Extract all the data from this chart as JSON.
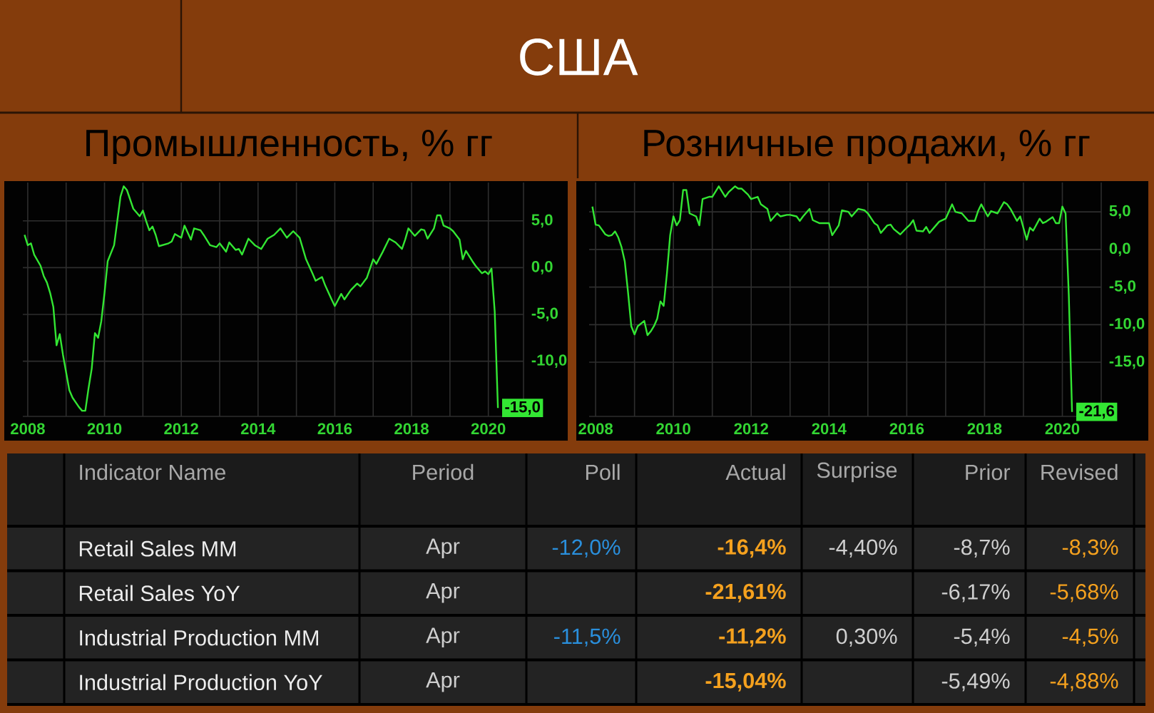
{
  "chart_data": [
    {
      "type": "line",
      "title": "Промышленность, % гг",
      "annotations": [
        "США"
      ],
      "x": [
        "2007-12",
        "2008-01",
        "2008-02",
        "2008-03",
        "2008-05",
        "2008-06",
        "2008-07",
        "2008-08",
        "2008-09",
        "2008-10",
        "2008-11",
        "2008-12",
        "2009-02",
        "2009-03",
        "2009-05",
        "2009-06",
        "2009-07",
        "2009-08",
        "2009-09",
        "2009-10",
        "2009-11",
        "2009-12",
        "2010-01",
        "2010-02",
        "2010-04",
        "2010-05",
        "2010-06",
        "2010-07",
        "2010-08",
        "2010-09",
        "2010-10",
        "2010-12",
        "2011-01",
        "2011-02",
        "2011-03",
        "2011-04",
        "2011-05",
        "2011-06",
        "2011-09",
        "2011-10",
        "2011-11",
        "2012-01",
        "2012-02",
        "2012-04",
        "2012-05",
        "2012-07",
        "2012-08",
        "2012-10",
        "2012-12",
        "2013-01",
        "2013-03",
        "2013-04",
        "2013-06",
        "2013-07",
        "2013-08",
        "2013-10",
        "2013-12",
        "2014-02",
        "2014-04",
        "2014-06",
        "2014-08",
        "2014-10",
        "2014-12",
        "2015-02",
        "2015-04",
        "2015-06",
        "2015-07",
        "2015-09",
        "2015-10",
        "2015-12",
        "2016-01",
        "2016-03",
        "2016-04",
        "2016-06",
        "2016-08",
        "2016-09",
        "2016-11",
        "2017-01",
        "2017-02",
        "2017-04",
        "2017-06",
        "2017-08",
        "2017-10",
        "2017-11",
        "2017-12",
        "2018-02",
        "2018-04",
        "2018-05",
        "2018-06",
        "2018-08",
        "2018-09",
        "2018-10",
        "2018-11",
        "2019-01",
        "2019-02",
        "2019-04",
        "2019-05",
        "2019-06",
        "2019-08",
        "2019-09",
        "2019-11",
        "2019-12",
        "2020-01",
        "2020-02",
        "2020-03",
        "2020-04"
      ],
      "series": [
        {
          "color": "#33e633",
          "values": [
            3.5,
            2.4,
            2.6,
            1.4,
            0.2,
            -0.9,
            -1.6,
            -2.7,
            -4.2,
            -8.3,
            -7.1,
            -9.3,
            -13.1,
            -13.9,
            -14.9,
            -15.3,
            -15.3,
            -12.9,
            -10.8,
            -7.0,
            -7.5,
            -5.7,
            -2.7,
            0.7,
            2.4,
            5.0,
            7.6,
            8.7,
            8.3,
            7.3,
            6.3,
            5.5,
            6.1,
            5.0,
            4.0,
            4.4,
            3.5,
            2.3,
            2.6,
            2.8,
            3.6,
            3.2,
            4.5,
            3.0,
            4.2,
            4.0,
            3.5,
            2.4,
            2.2,
            2.6,
            1.7,
            2.7,
            1.9,
            2.0,
            1.4,
            3.1,
            2.4,
            2.0,
            3.1,
            3.5,
            4.2,
            3.2,
            3.9,
            3.2,
            0.9,
            -0.6,
            -1.4,
            -1.0,
            -1.9,
            -3.4,
            -4.1,
            -2.8,
            -3.4,
            -2.4,
            -1.7,
            -2.0,
            -1.1,
            0.9,
            0.4,
            1.7,
            3.1,
            2.7,
            2.0,
            3.0,
            4.2,
            3.4,
            4.1,
            4.0,
            3.1,
            4.2,
            5.6,
            5.6,
            4.5,
            4.2,
            3.9,
            3.0,
            0.9,
            1.8,
            0.7,
            0.2,
            -0.6,
            -0.4,
            -0.7,
            -0.1,
            -4.7,
            -15.0
          ],
          "value_labels": [
            null,
            null,
            null,
            null,
            null,
            null,
            null,
            null,
            null,
            null,
            null,
            null,
            null,
            null,
            null,
            null,
            null,
            null,
            null,
            null,
            null,
            null,
            null,
            null,
            null,
            null,
            null,
            null,
            null,
            null,
            null,
            null,
            null,
            null,
            null,
            null,
            null,
            null,
            null,
            null,
            null,
            null,
            null,
            null,
            null,
            null,
            null,
            null,
            null,
            null,
            null,
            null,
            null,
            null,
            null,
            null,
            null,
            null,
            null,
            null,
            null,
            null,
            null,
            null,
            null,
            null,
            null,
            null,
            null,
            null,
            null,
            null,
            null,
            null,
            null,
            null,
            null,
            null,
            null,
            null,
            null,
            null,
            null,
            null,
            null,
            null,
            null,
            null,
            null,
            null,
            null,
            null,
            null,
            null,
            null,
            null,
            null,
            null,
            null,
            null,
            null,
            null,
            null,
            null,
            null,
            "-15,0"
          ]
        }
      ],
      "xlim": [
        "2007-11-15",
        "2020-12"
      ],
      "xticks": [
        "2008",
        {
          "value": "2009",
          "label": null
        },
        "2010",
        {
          "value": "2011",
          "label": null
        },
        "2012",
        {
          "value": "2013",
          "label": null
        },
        "2014",
        {
          "value": "2015",
          "label": null
        },
        "2016",
        {
          "value": "2017",
          "label": null
        },
        "2018",
        {
          "value": "2019",
          "label": null
        },
        "2020"
      ],
      "ylim": [
        -15.9,
        9.1
      ],
      "yticks": [
        {
          "value": 5,
          "label": "5,0"
        },
        {
          "value": 0,
          "label": "0,0"
        },
        {
          "value": -5,
          "label": "-5,0"
        },
        {
          "value": -10,
          "label": "-10,0"
        }
      ],
      "grid": true
    },
    {
      "type": "line",
      "title": "Розничные продажи, % гг",
      "x": [
        "2007-12",
        "2008-01",
        "2008-02",
        "2008-04",
        "2008-05",
        "2008-06",
        "2008-07",
        "2008-08",
        "2008-09",
        "2008-10",
        "2008-11",
        "2008-12",
        "2009-01",
        "2009-02",
        "2009-04",
        "2009-05",
        "2009-06",
        "2009-07",
        "2009-08",
        "2009-09",
        "2009-10",
        "2009-11",
        "2009-12",
        "2010-01",
        "2010-02",
        "2010-03",
        "2010-04",
        "2010-05",
        "2010-06",
        "2010-08",
        "2010-09",
        "2010-10",
        "2010-12",
        "2011-01",
        "2011-03",
        "2011-05",
        "2011-06",
        "2011-08",
        "2011-09",
        "2011-10",
        "2011-12",
        "2012-01",
        "2012-03",
        "2012-04",
        "2012-06",
        "2012-07",
        "2012-09",
        "2012-10",
        "2012-12",
        "2013-01",
        "2013-03",
        "2013-04",
        "2013-05",
        "2013-07",
        "2013-08",
        "2013-10",
        "2013-11",
        "2014-01",
        "2014-02",
        "2014-04",
        "2014-05",
        "2014-07",
        "2014-08",
        "2014-10",
        "2014-12",
        "2015-01",
        "2015-03",
        "2015-04",
        "2015-05",
        "2015-07",
        "2015-08",
        "2015-09",
        "2015-11",
        "2016-01",
        "2016-02",
        "2016-03",
        "2016-04",
        "2016-06",
        "2016-07",
        "2016-08",
        "2016-10",
        "2016-11",
        "2017-01",
        "2017-03",
        "2017-04",
        "2017-06",
        "2017-08",
        "2017-10",
        "2017-11",
        "2017-12",
        "2018-02",
        "2018-03",
        "2018-05",
        "2018-07",
        "2018-08",
        "2018-09",
        "2018-11",
        "2018-12",
        "2019-02",
        "2019-03",
        "2019-04",
        "2019-06",
        "2019-07",
        "2019-08",
        "2019-10",
        "2019-11",
        "2019-12",
        "2020-01",
        "2020-02",
        "2020-03",
        "2020-04"
      ],
      "series": [
        {
          "color": "#33e633",
          "values": [
            5.7,
            3.3,
            3.2,
            2.0,
            1.8,
            1.9,
            2.4,
            1.6,
            0.3,
            -1.6,
            -5.7,
            -10.2,
            -11.3,
            -10.2,
            -9.5,
            -11.4,
            -10.9,
            -10.2,
            -9.2,
            -6.9,
            -7.5,
            -3.2,
            1.9,
            4.4,
            3.2,
            3.9,
            7.9,
            7.9,
            4.8,
            4.4,
            3.2,
            6.7,
            7.0,
            7.0,
            8.4,
            7.0,
            7.6,
            8.4,
            8.1,
            8.1,
            7.3,
            6.7,
            7.0,
            6.0,
            5.4,
            3.8,
            4.8,
            4.4,
            4.6,
            4.6,
            4.4,
            3.8,
            4.4,
            5.4,
            3.9,
            3.5,
            3.5,
            3.5,
            1.9,
            3.2,
            5.2,
            5.0,
            4.4,
            5.4,
            5.2,
            4.8,
            3.5,
            3.2,
            2.2,
            3.2,
            3.3,
            2.7,
            2.0,
            2.9,
            3.3,
            3.9,
            2.5,
            2.4,
            3.0,
            2.2,
            3.2,
            3.7,
            4.1,
            6.0,
            5.0,
            4.8,
            3.8,
            3.8,
            5.1,
            6.0,
            4.4,
            5.1,
            4.8,
            6.3,
            6.0,
            5.4,
            3.8,
            4.4,
            1.3,
            2.9,
            2.5,
            4.1,
            3.5,
            3.7,
            4.3,
            3.5,
            3.5,
            5.7,
            4.8,
            -6.2,
            -21.6
          ],
          "value_labels": [
            null,
            null,
            null,
            null,
            null,
            null,
            null,
            null,
            null,
            null,
            null,
            null,
            null,
            null,
            null,
            null,
            null,
            null,
            null,
            null,
            null,
            null,
            null,
            null,
            null,
            null,
            null,
            null,
            null,
            null,
            null,
            null,
            null,
            null,
            null,
            null,
            null,
            null,
            null,
            null,
            null,
            null,
            null,
            null,
            null,
            null,
            null,
            null,
            null,
            null,
            null,
            null,
            null,
            null,
            null,
            null,
            null,
            null,
            null,
            null,
            null,
            null,
            null,
            null,
            null,
            null,
            null,
            null,
            null,
            null,
            null,
            null,
            null,
            null,
            null,
            null,
            null,
            null,
            null,
            null,
            null,
            null,
            null,
            null,
            null,
            null,
            null,
            null,
            null,
            null,
            null,
            null,
            null,
            null,
            null,
            null,
            null,
            null,
            null,
            null,
            null,
            null,
            null,
            null,
            null,
            null,
            null,
            null,
            null,
            null,
            "-21,6"
          ]
        }
      ],
      "xlim": [
        "2007-11",
        "2021-01"
      ],
      "xticks": [
        "2008",
        {
          "value": "2009",
          "label": null
        },
        "2010",
        {
          "value": "2011",
          "label": null
        },
        "2012",
        {
          "value": "2013",
          "label": null
        },
        "2014",
        {
          "value": "2015",
          "label": null
        },
        "2016",
        {
          "value": "2017",
          "label": null
        },
        "2018",
        {
          "value": "2019",
          "label": null
        },
        "2020"
      ],
      "ylim": [
        -22.2,
        8.9
      ],
      "yticks": [
        {
          "value": 5,
          "label": "5,0"
        },
        {
          "value": 0,
          "label": "0,0"
        },
        {
          "value": -5,
          "label": "-5,0"
        },
        {
          "value": -10,
          "label": "-10,0"
        },
        {
          "value": -15,
          "label": "-15,0"
        }
      ],
      "grid": true
    },
    {
      "type": "other",
      "ylabel": "Indicator Name",
      "categories": [
        "Period",
        "Poll",
        "Actual",
        "Surprise",
        "Prior",
        "Revised"
      ],
      "y_categories": [
        "Retail Sales MM",
        "Retail Sales YoY",
        "Industrial Production MM",
        "Industrial Production YoY"
      ],
      "cell_labels": [
        [
          "Apr",
          "-12,0%",
          "-16,4%",
          "-4,40%",
          "-8,7%",
          "-8,3%"
        ],
        [
          "Apr",
          null,
          "-21,61%",
          null,
          "-6,17%",
          "-5,68%"
        ],
        [
          "Apr",
          "-11,5%",
          "-11,2%",
          "0,30%",
          "-5,4%",
          "-4,5%"
        ],
        [
          "Apr",
          null,
          "-15,04%",
          null,
          "-5,49%",
          "-4,88%"
        ]
      ]
    }
  ]
}
